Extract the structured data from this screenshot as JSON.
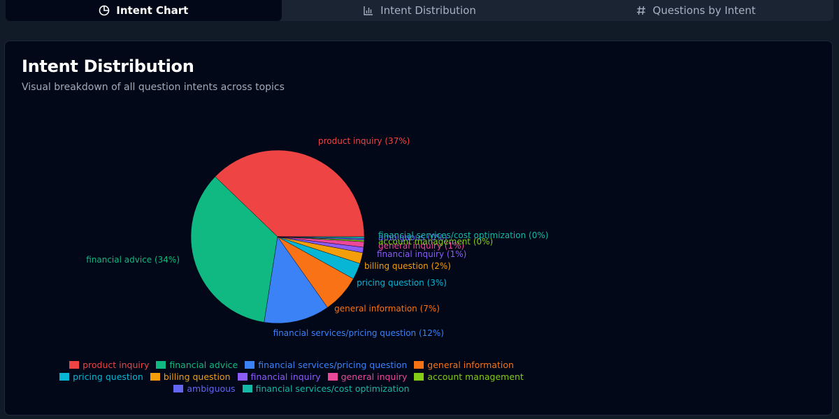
{
  "tabs": [
    {
      "label": "Intent Chart",
      "icon": "pie-chart-icon",
      "active": true
    },
    {
      "label": "Intent Distribution",
      "icon": "bar-chart-icon",
      "active": false
    },
    {
      "label": "Questions by Intent",
      "icon": "hash-icon",
      "active": false
    }
  ],
  "panel": {
    "title": "Intent Distribution",
    "subtitle": "Visual breakdown of all question intents across topics"
  },
  "chart_data": {
    "type": "pie",
    "title": "Intent Distribution",
    "subtitle": "Visual breakdown of all question intents across topics",
    "legend_position": "bottom",
    "slices": [
      {
        "name": "product inquiry",
        "value": 37,
        "label": "product inquiry (37%)",
        "color": "#ef4444"
      },
      {
        "name": "financial advice",
        "value": 34,
        "label": "financial advice (34%)",
        "color": "#10b981"
      },
      {
        "name": "financial services/pricing question",
        "value": 12,
        "label": "financial services/pricing question (12%)",
        "color": "#3b82f6"
      },
      {
        "name": "general information",
        "value": 7,
        "label": "general information (7%)",
        "color": "#f97316"
      },
      {
        "name": "pricing question",
        "value": 3,
        "label": "pricing question (3%)",
        "color": "#06b6d4"
      },
      {
        "name": "billing question",
        "value": 2,
        "label": "billing question (2%)",
        "color": "#f59e0b"
      },
      {
        "name": "financial inquiry",
        "value": 1,
        "label": "financial inquiry (1%)",
        "color": "#8b5cf6"
      },
      {
        "name": "general inquiry",
        "value": 1,
        "label": "general inquiry (1%)",
        "color": "#ec4899"
      },
      {
        "name": "account management",
        "value": 0.3,
        "label": "account management (0%)",
        "color": "#84cc16"
      },
      {
        "name": "ambiguous",
        "value": 0.3,
        "label": "ambiguous (0%)",
        "color": "#6366f1"
      },
      {
        "name": "financial services/cost optimization",
        "value": 0.3,
        "label": "financial services/cost optimization (0%)",
        "color": "#14b8a6"
      }
    ]
  }
}
